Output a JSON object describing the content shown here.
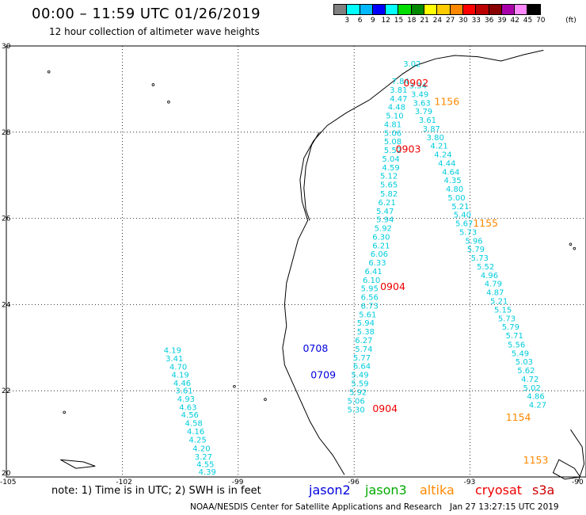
{
  "title": "00:00 – 11:59 UTC 01/26/2019",
  "subtitle": "12 hour collection of altimeter wave heights",
  "colorbar": {
    "colors": [
      "#808080",
      "#00ffff",
      "#00b8ff",
      "#0000ff",
      "#00ffff",
      "#00dd00",
      "#008800",
      "#ffff00",
      "#ffcc00",
      "#ff8800",
      "#ff0000",
      "#bb0000",
      "#880000",
      "#aa00aa",
      "#ff88ff",
      "#000000"
    ],
    "ticks": [
      "3",
      "6",
      "9",
      "12",
      "15",
      "18",
      "21",
      "24",
      "27",
      "30",
      "33",
      "36",
      "39",
      "42",
      "45",
      "70"
    ],
    "unit": "(ft)"
  },
  "map": {
    "lat_labels": [
      "30",
      "28",
      "26",
      "24",
      "22",
      "20"
    ],
    "lon_labels": [
      "-105",
      "-102",
      "-99",
      "-96",
      "-93",
      "-90"
    ],
    "track_color": "#00ccdd",
    "tracks": [
      {
        "name": "west-cyan",
        "points": [
          {
            "lon": -100.7,
            "lat": 22.95,
            "v": "4.19"
          },
          {
            "lon": -100.65,
            "lat": 22.76,
            "v": "3.41"
          },
          {
            "lon": -100.55,
            "lat": 22.56,
            "v": "4.70"
          },
          {
            "lon": -100.5,
            "lat": 22.38,
            "v": "4.19"
          },
          {
            "lon": -100.45,
            "lat": 22.19,
            "v": "4.46"
          },
          {
            "lon": -100.4,
            "lat": 22.01,
            "v": "3.61"
          },
          {
            "lon": -100.35,
            "lat": 21.82,
            "v": "4.93"
          },
          {
            "lon": -100.3,
            "lat": 21.63,
            "v": "4.63"
          },
          {
            "lon": -100.25,
            "lat": 21.45,
            "v": "4.56"
          },
          {
            "lon": -100.15,
            "lat": 21.26,
            "v": "4.58"
          },
          {
            "lon": -100.1,
            "lat": 21.07,
            "v": "4.16"
          },
          {
            "lon": -100.05,
            "lat": 20.87,
            "v": "4.25"
          },
          {
            "lon": -99.95,
            "lat": 20.67,
            "v": "4.20"
          },
          {
            "lon": -99.9,
            "lat": 20.48,
            "v": "3.27"
          },
          {
            "lon": -99.85,
            "lat": 20.3,
            "v": "4.55"
          },
          {
            "lon": -99.8,
            "lat": 20.13,
            "v": "4.39"
          }
        ]
      },
      {
        "name": "middle-cyan",
        "points": [
          {
            "lon": -94.8,
            "lat": 29.19,
            "v": "7.84"
          },
          {
            "lon": -94.85,
            "lat": 28.99,
            "v": "3.81"
          },
          {
            "lon": -94.85,
            "lat": 28.79,
            "v": "4.47"
          },
          {
            "lon": -94.9,
            "lat": 28.59,
            "v": "4.48"
          },
          {
            "lon": -94.95,
            "lat": 28.39,
            "v": "5.10"
          },
          {
            "lon": -95.0,
            "lat": 28.19,
            "v": "4.81"
          },
          {
            "lon": -95.0,
            "lat": 27.99,
            "v": "5.06"
          },
          {
            "lon": -95.0,
            "lat": 27.79,
            "v": "5.08"
          },
          {
            "lon": -95.0,
            "lat": 27.59,
            "v": "5.52"
          },
          {
            "lon": -95.05,
            "lat": 27.39,
            "v": "5.04"
          },
          {
            "lon": -95.05,
            "lat": 27.19,
            "v": "4.59"
          },
          {
            "lon": -95.1,
            "lat": 26.99,
            "v": "5.12"
          },
          {
            "lon": -95.1,
            "lat": 26.79,
            "v": "5.65"
          },
          {
            "lon": -95.1,
            "lat": 26.58,
            "v": "5.82"
          },
          {
            "lon": -95.15,
            "lat": 26.38,
            "v": "6.21"
          },
          {
            "lon": -95.2,
            "lat": 26.18,
            "v": "5.47"
          },
          {
            "lon": -95.2,
            "lat": 25.98,
            "v": "5.94"
          },
          {
            "lon": -95.25,
            "lat": 25.78,
            "v": "5.92"
          },
          {
            "lon": -95.3,
            "lat": 25.58,
            "v": "6.30"
          },
          {
            "lon": -95.3,
            "lat": 25.38,
            "v": "6.21"
          },
          {
            "lon": -95.35,
            "lat": 25.18,
            "v": "6.06"
          },
          {
            "lon": -95.4,
            "lat": 24.98,
            "v": "6.33"
          },
          {
            "lon": -95.5,
            "lat": 24.78,
            "v": "6.41"
          },
          {
            "lon": -95.55,
            "lat": 24.58,
            "v": "6.10"
          },
          {
            "lon": -95.6,
            "lat": 24.38,
            "v": "5.95"
          },
          {
            "lon": -95.6,
            "lat": 24.18,
            "v": "6.56"
          },
          {
            "lon": -95.6,
            "lat": 23.98,
            "v": "6.73"
          },
          {
            "lon": -95.65,
            "lat": 23.78,
            "v": "5.61"
          },
          {
            "lon": -95.7,
            "lat": 23.58,
            "v": "5.94"
          },
          {
            "lon": -95.7,
            "lat": 23.38,
            "v": "5.38"
          },
          {
            "lon": -95.75,
            "lat": 23.18,
            "v": "6.27"
          },
          {
            "lon": -95.75,
            "lat": 22.98,
            "v": "5.74"
          },
          {
            "lon": -95.8,
            "lat": 22.78,
            "v": "5.77"
          },
          {
            "lon": -95.8,
            "lat": 22.58,
            "v": "6.64"
          },
          {
            "lon": -95.85,
            "lat": 22.38,
            "v": "5.49"
          },
          {
            "lon": -95.85,
            "lat": 22.18,
            "v": "5.59"
          },
          {
            "lon": -95.9,
            "lat": 21.98,
            "v": "5.92"
          },
          {
            "lon": -95.95,
            "lat": 21.77,
            "v": "5.06"
          },
          {
            "lon": -95.95,
            "lat": 21.57,
            "v": "5.30"
          }
        ]
      },
      {
        "name": "east-cyan",
        "points": [
          {
            "lon": -94.5,
            "lat": 29.6,
            "v": "3.02"
          },
          {
            "lon": -94.35,
            "lat": 29.09,
            "v": "3.34"
          },
          {
            "lon": -94.3,
            "lat": 28.89,
            "v": "3.49"
          },
          {
            "lon": -94.25,
            "lat": 28.69,
            "v": "3.63"
          },
          {
            "lon": -94.2,
            "lat": 28.49,
            "v": "3.79"
          },
          {
            "lon": -94.1,
            "lat": 28.29,
            "v": "3.61"
          },
          {
            "lon": -94.0,
            "lat": 28.09,
            "v": "3.87"
          },
          {
            "lon": -93.9,
            "lat": 27.89,
            "v": "3.80"
          },
          {
            "lon": -93.8,
            "lat": 27.69,
            "v": "4.21"
          },
          {
            "lon": -93.7,
            "lat": 27.49,
            "v": "4.24"
          },
          {
            "lon": -93.6,
            "lat": 27.29,
            "v": "4.44"
          },
          {
            "lon": -93.5,
            "lat": 27.09,
            "v": "4.64"
          },
          {
            "lon": -93.45,
            "lat": 26.89,
            "v": "4.35"
          },
          {
            "lon": -93.4,
            "lat": 26.69,
            "v": "4.80"
          },
          {
            "lon": -93.35,
            "lat": 26.49,
            "v": "5.00"
          },
          {
            "lon": -93.25,
            "lat": 26.29,
            "v": "5.21"
          },
          {
            "lon": -93.2,
            "lat": 26.09,
            "v": "5.40"
          },
          {
            "lon": -93.15,
            "lat": 25.89,
            "v": "5.67"
          },
          {
            "lon": -93.05,
            "lat": 25.69,
            "v": "5.73"
          },
          {
            "lon": -92.9,
            "lat": 25.49,
            "v": "5.96"
          },
          {
            "lon": -92.85,
            "lat": 25.29,
            "v": "5.79"
          },
          {
            "lon": -92.75,
            "lat": 25.09,
            "v": "5.73"
          },
          {
            "lon": -92.6,
            "lat": 24.89,
            "v": "5.52"
          },
          {
            "lon": -92.5,
            "lat": 24.69,
            "v": "4.96"
          },
          {
            "lon": -92.4,
            "lat": 24.49,
            "v": "4.79"
          },
          {
            "lon": -92.35,
            "lat": 24.29,
            "v": "4.87"
          },
          {
            "lon": -92.25,
            "lat": 24.09,
            "v": "5.21"
          },
          {
            "lon": -92.15,
            "lat": 23.89,
            "v": "5.15"
          },
          {
            "lon": -92.05,
            "lat": 23.69,
            "v": "5.73"
          },
          {
            "lon": -91.95,
            "lat": 23.49,
            "v": "5.79"
          },
          {
            "lon": -91.85,
            "lat": 23.29,
            "v": "5.71"
          },
          {
            "lon": -91.8,
            "lat": 23.08,
            "v": "5.56"
          },
          {
            "lon": -91.7,
            "lat": 22.88,
            "v": "5.49"
          },
          {
            "lon": -91.6,
            "lat": 22.68,
            "v": "5.03"
          },
          {
            "lon": -91.55,
            "lat": 22.48,
            "v": "5.62"
          },
          {
            "lon": -91.45,
            "lat": 22.28,
            "v": "4.72"
          },
          {
            "lon": -91.4,
            "lat": 22.08,
            "v": "5.02"
          },
          {
            "lon": -91.3,
            "lat": 21.88,
            "v": "4.86"
          },
          {
            "lon": -91.25,
            "lat": 21.68,
            "v": "4.27"
          }
        ]
      }
    ],
    "pass_labels": [
      {
        "text": "0902",
        "lon": -94.4,
        "lat": 29.15,
        "color": "#ee0000"
      },
      {
        "text": "1156",
        "lon": -93.6,
        "lat": 28.72,
        "color": "#ff8800"
      },
      {
        "text": "0903",
        "lon": -94.6,
        "lat": 27.62,
        "color": "#ee0000"
      },
      {
        "text": "1155",
        "lon": -92.6,
        "lat": 25.9,
        "color": "#ff8800"
      },
      {
        "text": "0904",
        "lon": -95.0,
        "lat": 24.43,
        "color": "#ee0000"
      },
      {
        "text": "0708",
        "lon": -97.0,
        "lat": 23.0,
        "color": "#0000dd"
      },
      {
        "text": "0709",
        "lon": -96.8,
        "lat": 22.38,
        "color": "#0000dd"
      },
      {
        "text": "0904",
        "lon": -95.2,
        "lat": 21.6,
        "color": "#ee0000"
      },
      {
        "text": "1154",
        "lon": -91.75,
        "lat": 21.4,
        "color": "#ff8800"
      },
      {
        "text": "1153",
        "lon": -91.3,
        "lat": 20.4,
        "color": "#ff8800"
      }
    ]
  },
  "legend": {
    "note": "note: 1) Time is in UTC; 2) SWH is in feet",
    "satellites": [
      {
        "name": "jason2",
        "color": "#0000dd"
      },
      {
        "name": "jason3",
        "color": "#00aa00"
      },
      {
        "name": "altika",
        "color": "#ff8800"
      },
      {
        "name": "cryosat",
        "color": "#ee0000"
      },
      {
        "name": "s3a",
        "color": "#cc0000"
      }
    ]
  },
  "credit": {
    "agency": "NOAA/NESDIS Center for Satellite Applications and Research",
    "timestamp": "Jan 27 13:27:15 UTC 2019"
  }
}
